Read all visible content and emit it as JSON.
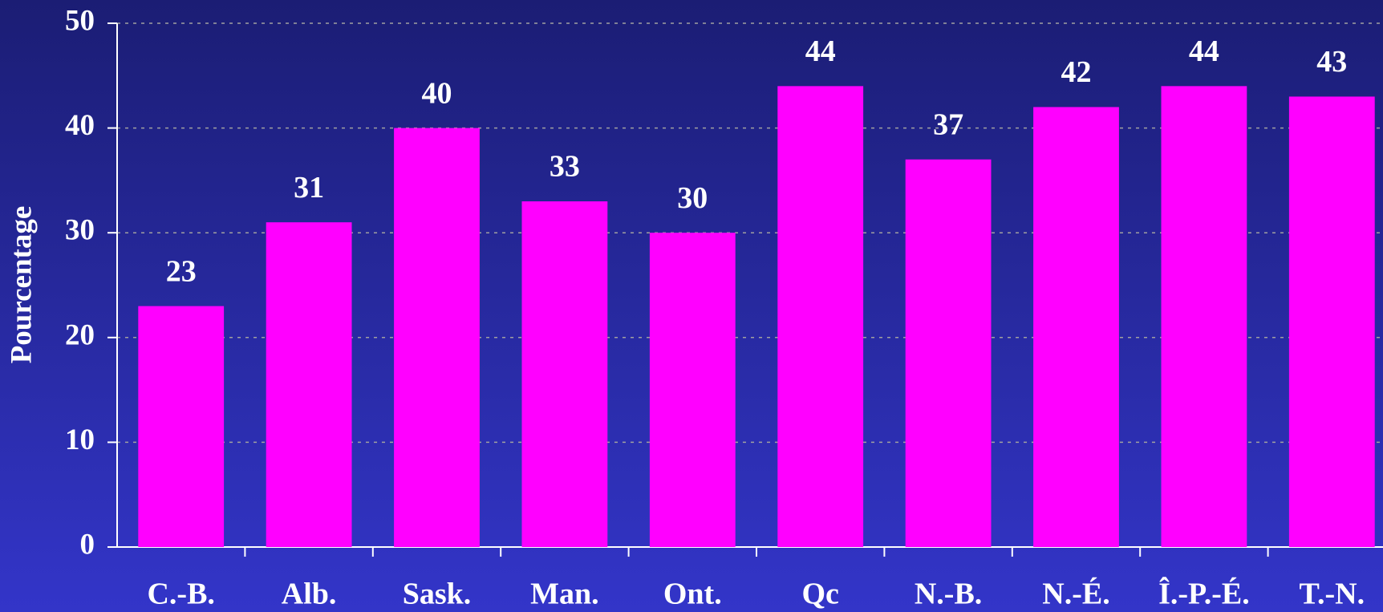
{
  "chart_data": {
    "type": "bar",
    "y_label": "Pourcentage",
    "categories": [
      "C.-B.",
      "Alb.",
      "Sask.",
      "Man.",
      "Ont.",
      "Qc",
      "N.-B.",
      "N.-É.",
      "Î.-P.-É.",
      "T.-N."
    ],
    "values": [
      23,
      31,
      40,
      33,
      30,
      44,
      37,
      42,
      44,
      43
    ],
    "color": "#ff00ff",
    "ylim": [
      0,
      50
    ],
    "yticks": [
      0,
      10,
      20,
      30,
      40,
      50
    ],
    "grid": true
  }
}
